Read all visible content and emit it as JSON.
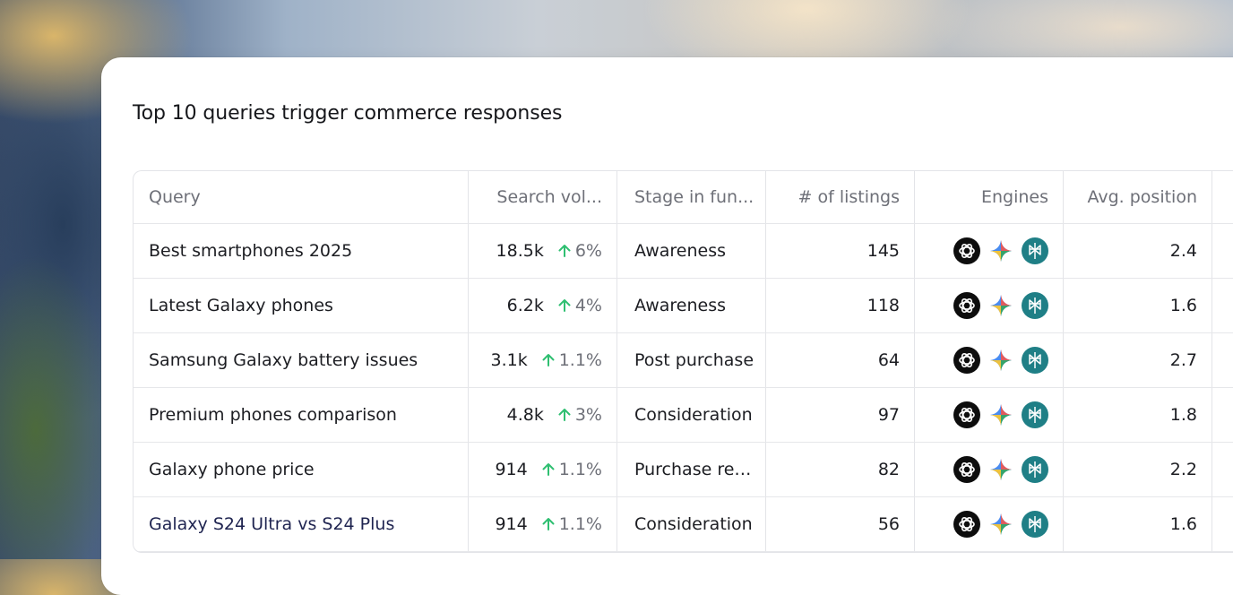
{
  "title": "Top 10 queries trigger commerce responses",
  "columns": {
    "query": "Query",
    "search_volume": "Search vol...",
    "stage": "Stage in fun...",
    "listings": "# of listings",
    "engines": "Engines",
    "avg_position": "Avg. position"
  },
  "trend_color": "#2fbf71",
  "engine_icons": [
    "openai-icon",
    "gemini-icon",
    "perplexity-icon"
  ],
  "rows": [
    {
      "query": "Best smartphones 2025",
      "volume": "18.5k",
      "change": "6%",
      "stage": "Awareness",
      "listings": "145",
      "avg_position": "2.4"
    },
    {
      "query": "Latest Galaxy phones",
      "volume": "6.2k",
      "change": "4%",
      "stage": "Awareness",
      "listings": "118",
      "avg_position": "1.6"
    },
    {
      "query": "Samsung Galaxy battery issues",
      "volume": "3.1k",
      "change": "1.1%",
      "stage": "Post purchase",
      "listings": "64",
      "avg_position": "2.7"
    },
    {
      "query": "Premium phones comparison",
      "volume": "4.8k",
      "change": "3%",
      "stage": "Consideration",
      "listings": "97",
      "avg_position": "1.8"
    },
    {
      "query": "Galaxy phone price",
      "volume": "914",
      "change": "1.1%",
      "stage": "Purchase research",
      "listings": "82",
      "avg_position": "2.2"
    },
    {
      "query": "Galaxy S24 Ultra vs S24 Plus",
      "volume": "914",
      "change": "1.1%",
      "stage": "Consideration",
      "listings": "56",
      "avg_position": "1.6"
    }
  ]
}
